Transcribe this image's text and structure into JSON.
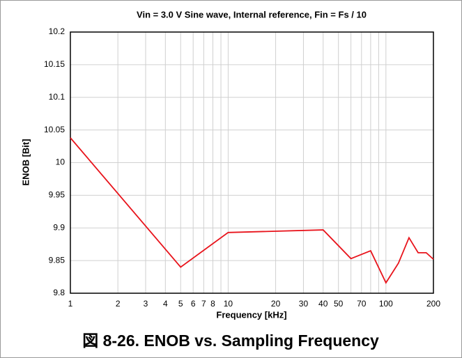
{
  "chart_data": {
    "type": "line",
    "title": "Vin = 3.0 V Sine wave, Internal reference, Fin = Fs / 10",
    "xlabel": "Frequency [kHz]",
    "ylabel": "ENOB [Bit]",
    "caption": "図 8-26. ENOB vs. Sampling Frequency",
    "x": [
      1,
      5,
      10,
      40,
      60,
      80,
      100,
      120,
      140,
      160,
      180,
      200
    ],
    "series": [
      {
        "name": "ENOB",
        "color": "#e8131b",
        "values": [
          10.038,
          9.84,
          9.893,
          9.897,
          9.853,
          9.865,
          9.816,
          9.846,
          9.885,
          9.862,
          9.862,
          9.852
        ]
      }
    ],
    "xscale": "log",
    "xlim": [
      1,
      200
    ],
    "xticks": [
      1,
      2,
      3,
      4,
      5,
      6,
      7,
      8,
      10,
      20,
      30,
      40,
      50,
      70,
      100,
      200
    ],
    "xminor": [
      9,
      60,
      80,
      90
    ],
    "ylim": [
      9.8,
      10.2
    ],
    "yticks": [
      9.8,
      9.85,
      9.9,
      9.95,
      10,
      10.05,
      10.1,
      10.15,
      10.2
    ],
    "grid": true
  }
}
